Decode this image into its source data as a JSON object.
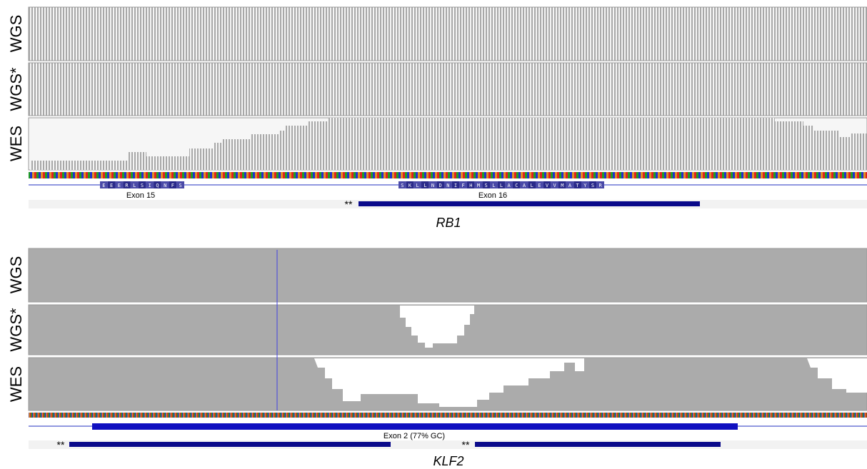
{
  "panels": [
    {
      "gene": "RB1",
      "tracks": [
        "WGS",
        "WGS*",
        "WES"
      ],
      "exons": [
        "Exon 15",
        "Exon 16"
      ],
      "amino_acids": [
        [
          "E",
          "E",
          "E",
          "R",
          "L",
          "S",
          "I",
          "Q",
          "N",
          "F",
          "S"
        ],
        [
          "S",
          "K",
          "L",
          "L",
          "N",
          "D",
          "N",
          "I",
          "F",
          "H",
          "M",
          "S",
          "L",
          "L",
          "A",
          "C",
          "A",
          "L",
          "E",
          "V",
          "V",
          "M",
          "A",
          "T",
          "Y",
          "S",
          "R"
        ]
      ],
      "markers": [
        "**"
      ]
    },
    {
      "gene": "KLF2",
      "tracks": [
        "WGS",
        "WGS*",
        "WES"
      ],
      "exons": [
        "Exon 2 (77% GC)"
      ],
      "markers": [
        "**",
        "**"
      ]
    }
  ]
}
